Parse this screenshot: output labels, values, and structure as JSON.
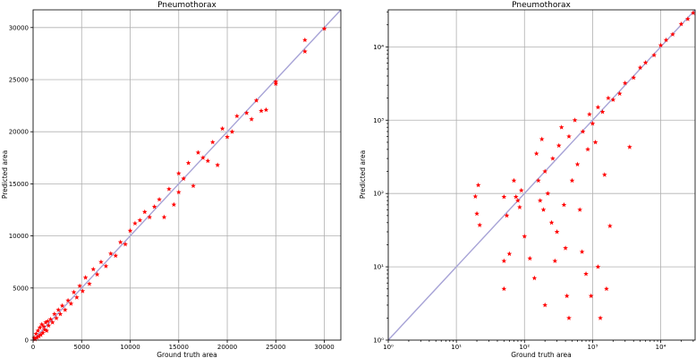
{
  "chart_data": [
    {
      "type": "scatter",
      "title": "Pneumothorax",
      "xlabel": "Ground truth area",
      "ylabel": "Predicted area",
      "xscale": "linear",
      "yscale": "linear",
      "xlim": [
        0,
        31700
      ],
      "ylim": [
        0,
        31700
      ],
      "xticks": [
        0,
        5000,
        10000,
        15000,
        20000,
        25000,
        30000
      ],
      "yticks": [
        0,
        5000,
        10000,
        15000,
        20000,
        25000,
        30000
      ],
      "xtick_labels": [
        "0",
        "5000",
        "10000",
        "15000",
        "20000",
        "25000",
        "30000"
      ],
      "ytick_labels": [
        "0",
        "5000",
        "10000",
        "15000",
        "20000",
        "25000",
        "30000"
      ],
      "grid": true,
      "reference_line": "y = x",
      "marker": "star",
      "marker_color": "#ff0000",
      "line_color": "#a7a3d6",
      "points": [
        [
          100,
          200
        ],
        [
          200,
          80
        ],
        [
          300,
          600
        ],
        [
          400,
          250
        ],
        [
          500,
          900
        ],
        [
          600,
          350
        ],
        [
          700,
          1200
        ],
        [
          800,
          500
        ],
        [
          900,
          1500
        ],
        [
          1000,
          700
        ],
        [
          1100,
          1300
        ],
        [
          1200,
          1000
        ],
        [
          1300,
          1700
        ],
        [
          1400,
          900
        ],
        [
          1500,
          1800
        ],
        [
          1600,
          1400
        ],
        [
          1800,
          2000
        ],
        [
          2000,
          1700
        ],
        [
          2200,
          2500
        ],
        [
          2400,
          2100
        ],
        [
          2600,
          2900
        ],
        [
          2800,
          2500
        ],
        [
          3000,
          3300
        ],
        [
          3300,
          2900
        ],
        [
          3600,
          3800
        ],
        [
          3900,
          3500
        ],
        [
          4200,
          4600
        ],
        [
          4500,
          4100
        ],
        [
          4800,
          5200
        ],
        [
          5100,
          4700
        ],
        [
          5400,
          6000
        ],
        [
          5800,
          5400
        ],
        [
          6200,
          6800
        ],
        [
          6600,
          6300
        ],
        [
          7000,
          7500
        ],
        [
          7500,
          7100
        ],
        [
          8000,
          8300
        ],
        [
          8500,
          8100
        ],
        [
          9000,
          9400
        ],
        [
          9500,
          9200
        ],
        [
          10000,
          10500
        ],
        [
          10500,
          11200
        ],
        [
          11000,
          11500
        ],
        [
          11500,
          12300
        ],
        [
          12000,
          11800
        ],
        [
          12500,
          12800
        ],
        [
          13000,
          13500
        ],
        [
          13500,
          11800
        ],
        [
          14000,
          14500
        ],
        [
          14500,
          13000
        ],
        [
          15000,
          16000
        ],
        [
          15000,
          14200
        ],
        [
          15500,
          15500
        ],
        [
          16000,
          17000
        ],
        [
          16500,
          14800
        ],
        [
          17000,
          18000
        ],
        [
          17500,
          17500
        ],
        [
          18000,
          17200
        ],
        [
          18500,
          19000
        ],
        [
          19000,
          16800
        ],
        [
          19500,
          20300
        ],
        [
          20000,
          19500
        ],
        [
          20500,
          20000
        ],
        [
          21000,
          21500
        ],
        [
          22000,
          21800
        ],
        [
          22500,
          21200
        ],
        [
          23000,
          23000
        ],
        [
          23500,
          22000
        ],
        [
          24000,
          22100
        ],
        [
          25000,
          24600
        ],
        [
          25000,
          24800
        ],
        [
          28000,
          27700
        ],
        [
          28000,
          28800
        ],
        [
          30000,
          29900
        ]
      ]
    },
    {
      "type": "scatter",
      "title": "Pneumothorax",
      "xlabel": "Ground truth area",
      "ylabel": "Predicted area",
      "xscale": "log",
      "yscale": "log",
      "xlim": [
        1,
        32000
      ],
      "ylim": [
        1,
        32000
      ],
      "xticks": [
        1,
        10,
        100,
        1000,
        10000
      ],
      "yticks": [
        1,
        10,
        100,
        1000,
        10000
      ],
      "xtick_labels": [
        "10⁰",
        "10¹",
        "10²",
        "10³",
        "10⁴"
      ],
      "ytick_labels": [
        "10⁰",
        "10¹",
        "10²",
        "10³",
        "10⁴"
      ],
      "grid": true,
      "reference_line": "y = x",
      "marker": "star",
      "marker_color": "#ff0000",
      "line_color": "#a7a3d6",
      "points": [
        [
          19,
          91
        ],
        [
          20,
          53
        ],
        [
          21,
          130
        ],
        [
          22,
          37
        ],
        [
          50,
          90
        ],
        [
          50,
          12
        ],
        [
          50,
          5
        ],
        [
          55,
          50
        ],
        [
          60,
          15
        ],
        [
          70,
          150
        ],
        [
          75,
          90
        ],
        [
          80,
          80
        ],
        [
          85,
          65
        ],
        [
          90,
          110
        ],
        [
          100,
          26
        ],
        [
          120,
          13
        ],
        [
          140,
          7
        ],
        [
          150,
          350
        ],
        [
          160,
          150
        ],
        [
          170,
          80
        ],
        [
          180,
          550
        ],
        [
          190,
          60
        ],
        [
          200,
          3
        ],
        [
          200,
          200
        ],
        [
          220,
          100
        ],
        [
          250,
          40
        ],
        [
          260,
          300
        ],
        [
          280,
          12
        ],
        [
          300,
          30
        ],
        [
          320,
          450
        ],
        [
          350,
          800
        ],
        [
          380,
          70
        ],
        [
          400,
          18
        ],
        [
          420,
          4
        ],
        [
          450,
          2
        ],
        [
          450,
          600
        ],
        [
          500,
          150
        ],
        [
          550,
          1000
        ],
        [
          600,
          250
        ],
        [
          650,
          60
        ],
        [
          700,
          16
        ],
        [
          720,
          700
        ],
        [
          800,
          8
        ],
        [
          850,
          400
        ],
        [
          900,
          1200
        ],
        [
          950,
          4
        ],
        [
          1000,
          900
        ],
        [
          1100,
          500
        ],
        [
          1200,
          10
        ],
        [
          1200,
          1500
        ],
        [
          1300,
          2
        ],
        [
          1400,
          1300
        ],
        [
          1500,
          180
        ],
        [
          1600,
          5
        ],
        [
          1700,
          2000
        ],
        [
          1800,
          36
        ],
        [
          2000,
          1900
        ],
        [
          2500,
          2300
        ],
        [
          3000,
          3200
        ],
        [
          3500,
          430
        ],
        [
          4000,
          3800
        ],
        [
          5000,
          5200
        ],
        [
          6000,
          6100
        ],
        [
          8000,
          7700
        ],
        [
          10000,
          10500
        ],
        [
          12000,
          12400
        ],
        [
          15000,
          14800
        ],
        [
          20000,
          20500
        ],
        [
          25000,
          24000
        ],
        [
          30000,
          29000
        ]
      ]
    }
  ]
}
